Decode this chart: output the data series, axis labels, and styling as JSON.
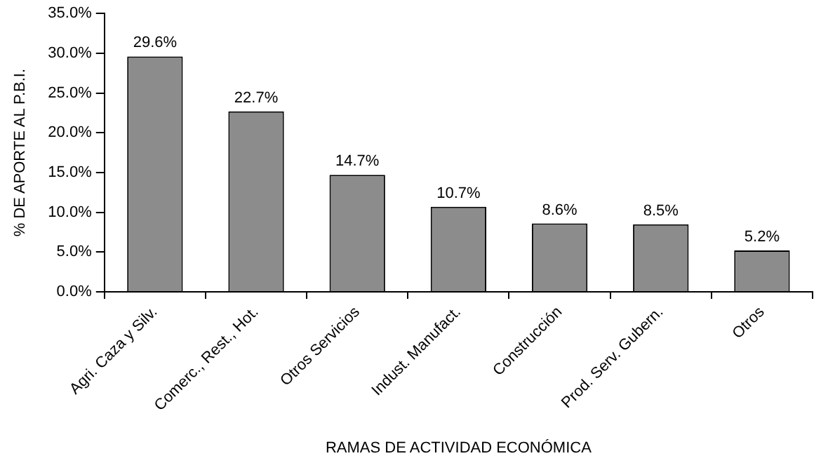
{
  "chart_data": {
    "type": "bar",
    "xlabel": "RAMAS DE ACTIVIDAD ECONÓMICA",
    "ylabel": "% DE APORTE AL P.B.I.",
    "categories": [
      "Agri. Caza y Silv.",
      "Comerc., Rest., Hot.",
      "Otros Servicios",
      "Indust. Manufact.",
      "Construcción",
      "Prod. Serv. Gubern.",
      "Otros"
    ],
    "values": [
      29.6,
      22.7,
      14.7,
      10.7,
      8.6,
      8.5,
      5.2
    ],
    "value_labels": [
      "29.6%",
      "22.7%",
      "14.7%",
      "10.7%",
      "8.6%",
      "8.5%",
      "5.2%"
    ],
    "color": "#8c8c8c",
    "ylim": [
      0,
      35
    ],
    "yticks": [
      {
        "value": 0,
        "label": "0.0%"
      },
      {
        "value": 5,
        "label": "5.0%"
      },
      {
        "value": 10,
        "label": "10.0%"
      },
      {
        "value": 15,
        "label": "15.0%"
      },
      {
        "value": 20,
        "label": "20.0%"
      },
      {
        "value": 25,
        "label": "25.0%"
      },
      {
        "value": 30,
        "label": "30.0%"
      },
      {
        "value": 35,
        "label": "35.0%"
      }
    ],
    "grid": false,
    "legend": false
  }
}
